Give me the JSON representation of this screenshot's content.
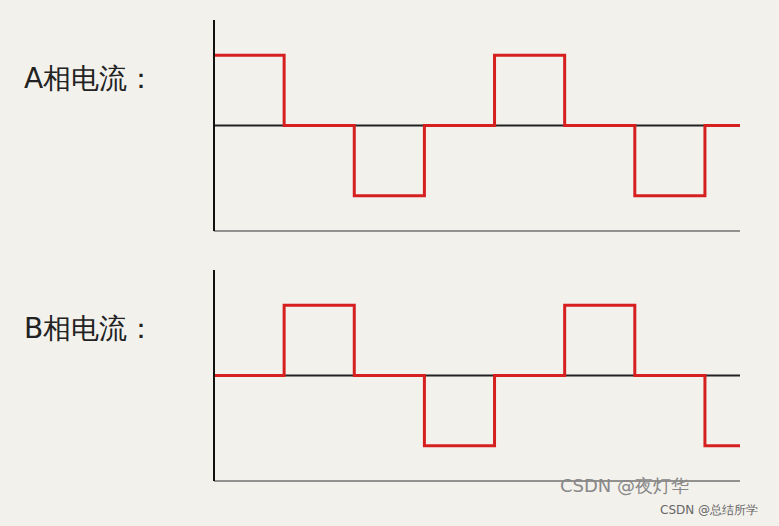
{
  "chart_data": [
    {
      "type": "line",
      "title": "A相电流：",
      "x": [
        0,
        1,
        2,
        3,
        4,
        5,
        6,
        7,
        7.5
      ],
      "values": [
        1,
        0,
        -1,
        0,
        1,
        0,
        -1,
        0,
        0
      ],
      "color": "#d62020",
      "line_style": "step",
      "xlim": [
        0,
        7.5
      ],
      "ylim": [
        -1.5,
        1.5
      ],
      "xticks": [],
      "yticks": [],
      "grid": false,
      "tick_labels": false
    },
    {
      "type": "line",
      "title": "B相电流：",
      "x": [
        0,
        1,
        2,
        3,
        4,
        5,
        6,
        7,
        7.5
      ],
      "values": [
        0,
        1,
        0,
        -1,
        0,
        1,
        0,
        -1,
        -1
      ],
      "color": "#d62020",
      "line_style": "step",
      "xlim": [
        0,
        7.5
      ],
      "ylim": [
        -1.5,
        1.5
      ],
      "xticks": [],
      "yticks": [],
      "grid": false,
      "tick_labels": false
    }
  ],
  "watermarks": [
    "CSDN @夜灯华",
    "CSDN @总结所学"
  ]
}
